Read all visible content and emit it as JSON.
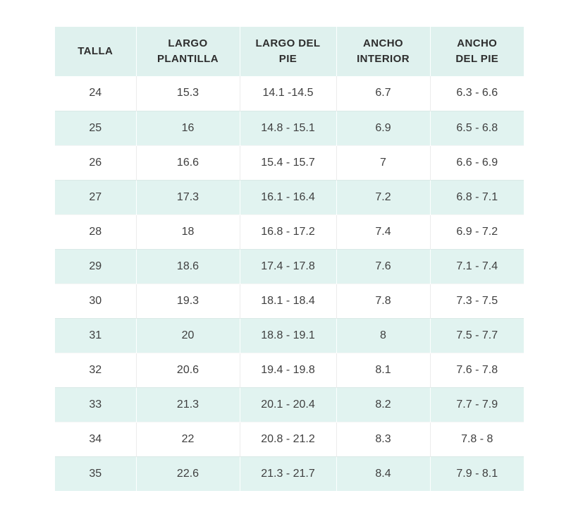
{
  "colors": {
    "page_bg": "#ffffff",
    "header_bg": "#dff1ee",
    "row_alt_bg": "#e1f3f0",
    "header_text": "#2d2d2d",
    "cell_text": "#3f3f3f",
    "divider_white_rows": "#ececec",
    "divider_mint_rows": "#ffffff"
  },
  "chart_data": {
    "type": "table",
    "title": "",
    "legend_position": "none",
    "grid": "column-dividers",
    "columns": [
      "TALLA",
      "LARGO PLANTILLA",
      "LARGO DEL PIE",
      "ANCHO INTERIOR",
      "ANCHO DEL PIE"
    ],
    "rows": [
      [
        "24",
        "15.3",
        "14.1 -14.5",
        "6.7",
        "6.3 - 6.6"
      ],
      [
        "25",
        "16",
        "14.8 - 15.1",
        "6.9",
        "6.5 - 6.8"
      ],
      [
        "26",
        "16.6",
        "15.4 - 15.7",
        "7",
        "6.6 - 6.9"
      ],
      [
        "27",
        "17.3",
        "16.1 - 16.4",
        "7.2",
        "6.8 - 7.1"
      ],
      [
        "28",
        "18",
        "16.8 - 17.2",
        "7.4",
        "6.9 - 7.2"
      ],
      [
        "29",
        "18.6",
        "17.4 - 17.8",
        "7.6",
        "7.1 - 7.4"
      ],
      [
        "30",
        "19.3",
        "18.1 - 18.4",
        "7.8",
        "7.3 - 7.5"
      ],
      [
        "31",
        "20",
        "18.8 - 19.1",
        "8",
        "7.5 - 7.7"
      ],
      [
        "32",
        "20.6",
        "19.4 - 19.8",
        "8.1",
        "7.6 - 7.8"
      ],
      [
        "33",
        "21.3",
        "20.1 - 20.4",
        "8.2",
        "7.7 - 7.9"
      ],
      [
        "34",
        "22",
        "20.8 - 21.2",
        "8.3",
        "7.8 - 8"
      ],
      [
        "35",
        "22.6",
        "21.3 - 21.7",
        "8.4",
        "7.9 - 8.1"
      ]
    ]
  }
}
